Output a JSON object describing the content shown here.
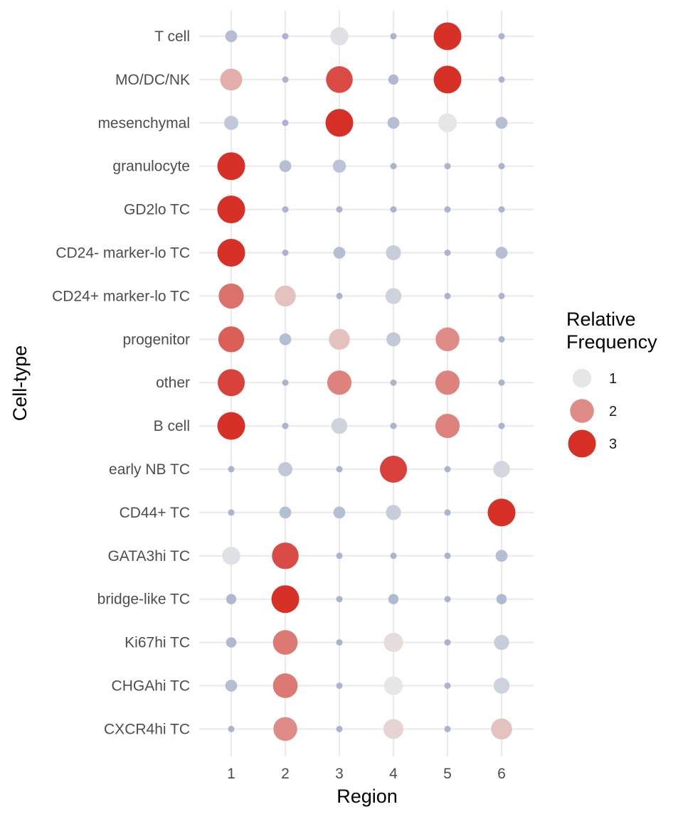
{
  "chart_data": {
    "type": "scatter",
    "title": "",
    "xlabel": "Region",
    "ylabel": "Cell-type",
    "x_categories": [
      "1",
      "2",
      "3",
      "4",
      "5",
      "6"
    ],
    "y_categories": [
      "T cell",
      "MO/DC/NK",
      "mesenchymal",
      "granulocyte",
      "GD2lo TC",
      "CD24- marker-lo TC",
      "CD24+ marker-lo TC",
      "progenitor",
      "other",
      "B cell",
      "early NB TC",
      "CD44+ TC",
      "GATA3hi TC",
      "bridge-like TC",
      "Ki67hi TC",
      "CHGAhi TC",
      "CXCR4hi TC"
    ],
    "value_description": "Relative Frequency (size and color encode value)",
    "values": [
      [
        0.2,
        0.0,
        0.9,
        0.0,
        3.0,
        0.0
      ],
      [
        1.6,
        0.0,
        2.7,
        0.1,
        3.0,
        0.0
      ],
      [
        0.4,
        0.0,
        3.0,
        0.2,
        1.0,
        0.2
      ],
      [
        3.0,
        0.2,
        0.3,
        0.0,
        0.0,
        0.0
      ],
      [
        3.0,
        0.0,
        0.0,
        0.0,
        0.0,
        0.0
      ],
      [
        3.0,
        0.0,
        0.2,
        0.5,
        0.0,
        0.2
      ],
      [
        2.3,
        1.4,
        0.0,
        0.6,
        0.0,
        0.0
      ],
      [
        2.5,
        0.2,
        1.4,
        0.4,
        2.0,
        0.0
      ],
      [
        2.8,
        0.0,
        2.1,
        0.0,
        2.1,
        0.0
      ],
      [
        3.0,
        0.0,
        0.6,
        0.0,
        2.1,
        0.0
      ],
      [
        0.0,
        0.4,
        0.0,
        2.8,
        0.0,
        0.7
      ],
      [
        0.0,
        0.2,
        0.2,
        0.5,
        0.0,
        3.0
      ],
      [
        0.9,
        2.7,
        0.0,
        0.0,
        0.0,
        0.2
      ],
      [
        0.1,
        3.0,
        0.0,
        0.1,
        0.0,
        0.1
      ],
      [
        0.1,
        2.2,
        0.0,
        1.1,
        0.0,
        0.5
      ],
      [
        0.2,
        2.2,
        0.0,
        1.0,
        0.0,
        0.6
      ],
      [
        0.0,
        2.0,
        0.0,
        1.2,
        0.0,
        1.4
      ]
    ],
    "legend": {
      "title": "Relative Frequency",
      "title_lines": [
        "Relative",
        "Frequency"
      ],
      "entries": [
        {
          "label": "1",
          "value": 1
        },
        {
          "label": "2",
          "value": 2
        },
        {
          "label": "3",
          "value": 3
        }
      ],
      "position": "right"
    },
    "color_scale": {
      "low": "#aab4d0",
      "mid": "#e6e6e6",
      "high": "#d73027"
    },
    "grid": true,
    "xlim": [
      0.4,
      6.6
    ]
  }
}
